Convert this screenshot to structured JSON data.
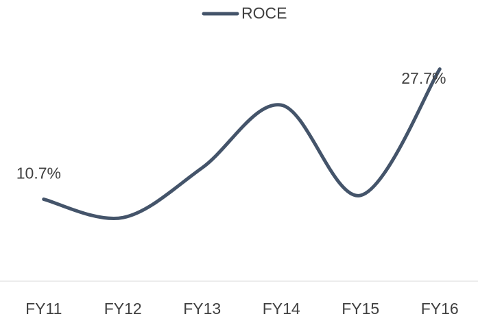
{
  "chart_data": {
    "type": "line",
    "categories": [
      "FY11",
      "FY12",
      "FY13",
      "FY14",
      "FY15",
      "FY16"
    ],
    "series": [
      {
        "name": "ROCE",
        "color": "#44546a",
        "values": [
          10.7,
          8.3,
          14.8,
          23.0,
          11.2,
          27.7
        ],
        "value_labels": [
          "10.7%",
          null,
          null,
          null,
          null,
          "27.7%"
        ]
      }
    ],
    "ylim": [
      0,
      30
    ],
    "legend": "top"
  }
}
